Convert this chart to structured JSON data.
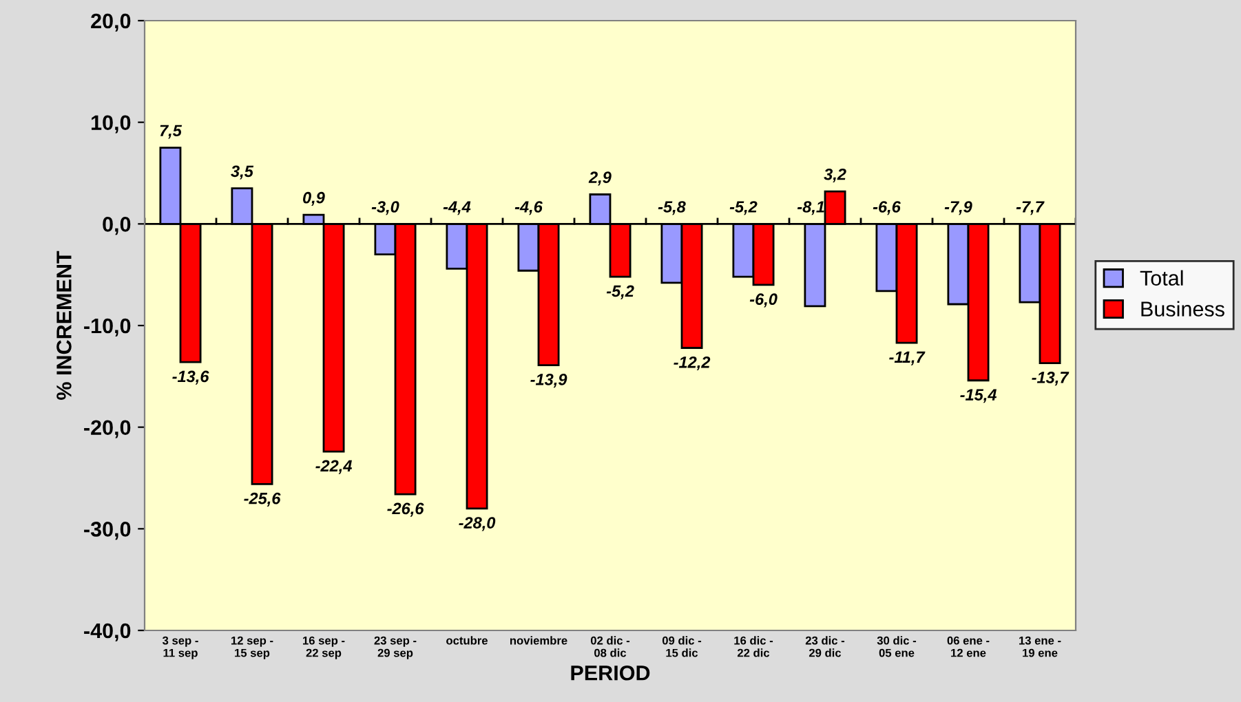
{
  "chart_data": {
    "type": "bar",
    "xlabel": "PERIOD",
    "ylabel": "% INCREMENT",
    "categories": [
      "3 sep - 11 sep",
      "12 sep - 15 sep",
      "16 sep - 22 sep",
      "23 sep - 29 sep",
      "octubre",
      "noviembre",
      "02 dic - 08 dic",
      "09 dic - 15 dic",
      "16 dic - 22 dic",
      "23 dic - 29 dic",
      "30 dic - 05 ene",
      "06 ene - 12 ene",
      "13 ene - 19 ene"
    ],
    "series": [
      {
        "name": "Total",
        "color": "#9999ff",
        "values": [
          7.5,
          3.5,
          0.9,
          -3.0,
          -4.4,
          -4.6,
          2.9,
          -5.8,
          -5.2,
          -8.1,
          -6.6,
          -7.9,
          -7.7
        ],
        "value_labels": [
          "7,5",
          "3,5",
          "0,9",
          "-3,0",
          "-4,4",
          "-4,6",
          "2,9",
          "-5,8",
          "-5,2",
          "-8,1",
          "-6,6",
          "-7,9",
          "-7,7"
        ]
      },
      {
        "name": "Business",
        "color": "#ff0000",
        "values": [
          -13.6,
          -25.6,
          -22.4,
          -26.6,
          -28.0,
          -13.9,
          -5.2,
          -12.2,
          -6.0,
          3.2,
          -11.7,
          -15.4,
          -13.7
        ],
        "value_labels": [
          "-13,6",
          "-25,6",
          "-22,4",
          "-26,6",
          "-28,0",
          "-13,9",
          "-5,2",
          "-12,2",
          "-6,0",
          "3,2",
          "-11,7",
          "-15,4",
          "-13,7"
        ]
      }
    ],
    "ylim": [
      -40,
      20
    ],
    "yticks": [
      {
        "value": -40,
        "label": "-40,0"
      },
      {
        "value": -30,
        "label": "-30,0"
      },
      {
        "value": -20,
        "label": "-20,0"
      },
      {
        "value": -10,
        "label": "-10,0"
      },
      {
        "value": 0,
        "label": "0,0"
      },
      {
        "value": 10,
        "label": "10,0"
      },
      {
        "value": 20,
        "label": "20,0"
      }
    ],
    "legend": "right"
  }
}
